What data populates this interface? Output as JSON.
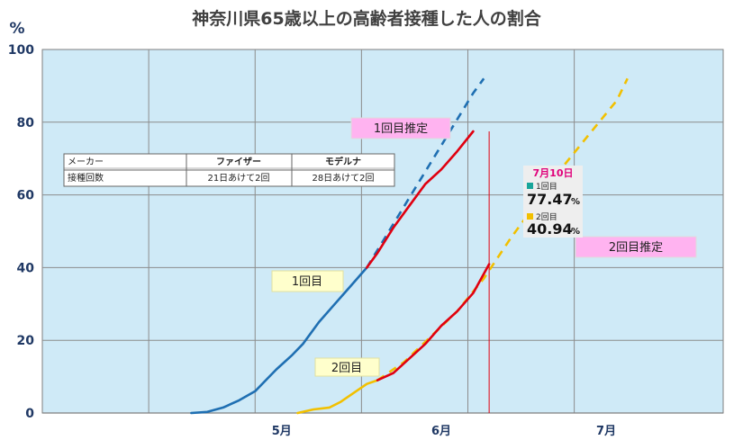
{
  "chart_data": {
    "type": "line",
    "title": "神奈川県65歳以上の高齢者接種した人の割合",
    "ylabel": "%",
    "ylim": [
      0,
      100
    ],
    "yticks": [
      0,
      20,
      40,
      60,
      80,
      100
    ],
    "x_month_labels": [
      {
        "label": "5月",
        "x": 45
      },
      {
        "label": "6月",
        "x": 75
      },
      {
        "label": "7月",
        "x": 106
      }
    ],
    "xlim": [
      0,
      128
    ],
    "grid": true,
    "background": "#cfeaf7",
    "series": [
      {
        "name": "1回目",
        "color": "#1f6fb2",
        "style": "solid",
        "points": [
          [
            28,
            0
          ],
          [
            31,
            0.3
          ],
          [
            34,
            1.5
          ],
          [
            37,
            3.5
          ],
          [
            40,
            6
          ],
          [
            42,
            9
          ],
          [
            44,
            12
          ],
          [
            47,
            16
          ],
          [
            49,
            19
          ],
          [
            52,
            25
          ],
          [
            55,
            30
          ],
          [
            58,
            35
          ],
          [
            61,
            40
          ]
        ]
      },
      {
        "name": "1回目推定",
        "color": "#1f6fb2",
        "style": "dashed",
        "points": [
          [
            61,
            40
          ],
          [
            66,
            52
          ],
          [
            71,
            64
          ],
          [
            76,
            76
          ],
          [
            81,
            88
          ],
          [
            83,
            92
          ]
        ]
      },
      {
        "name": "",
        "color": "#e00010",
        "style": "solid",
        "points": [
          [
            61,
            40
          ],
          [
            63,
            44
          ],
          [
            66,
            51
          ],
          [
            69,
            57
          ],
          [
            72,
            63
          ],
          [
            75,
            67
          ],
          [
            78,
            72
          ],
          [
            81,
            77.47
          ]
        ]
      },
      {
        "name": "2回目",
        "color": "#f2c000",
        "style": "solid",
        "points": [
          [
            48,
            0
          ],
          [
            51,
            1
          ],
          [
            54,
            1.5
          ],
          [
            56,
            3
          ],
          [
            58,
            5
          ],
          [
            61,
            8
          ],
          [
            63,
            9
          ]
        ]
      },
      {
        "name": "2回目推定",
        "color": "#f2c000",
        "style": "dashed",
        "points": [
          [
            63,
            9
          ],
          [
            68,
            14
          ],
          [
            73,
            21
          ],
          [
            78,
            28
          ],
          [
            83,
            37
          ],
          [
            88,
            48
          ],
          [
            93,
            58
          ],
          [
            98,
            68
          ],
          [
            103,
            77
          ],
          [
            108,
            86
          ],
          [
            110,
            92
          ]
        ]
      },
      {
        "name": "",
        "color": "#e00010",
        "style": "solid",
        "points": [
          [
            63,
            9
          ],
          [
            66,
            11
          ],
          [
            69,
            15
          ],
          [
            72,
            19
          ],
          [
            75,
            24
          ],
          [
            78,
            28
          ],
          [
            81,
            33
          ],
          [
            84,
            40.94
          ]
        ]
      }
    ],
    "reference_line": {
      "x": 84,
      "color": "#e00010"
    },
    "labels": [
      {
        "text": "1回目推定",
        "style": "pink"
      },
      {
        "text": "2回目推定",
        "style": "pink"
      },
      {
        "text": "1回目",
        "style": "yellow"
      },
      {
        "text": "2回目",
        "style": "yellow"
      }
    ],
    "table": {
      "headers": [
        "メーカー",
        "ファイザー",
        "モデルナ"
      ],
      "row": [
        "接種回数",
        "21日あけて2回",
        "28日あけて2回"
      ]
    },
    "annotation": {
      "date": "7月10日",
      "first_label": "1回目",
      "first_value": "77.47",
      "second_label": "2回目",
      "second_value": "40.94",
      "pct_sign": "%",
      "first_color": "#18a59a",
      "second_color": "#f2c000"
    }
  }
}
